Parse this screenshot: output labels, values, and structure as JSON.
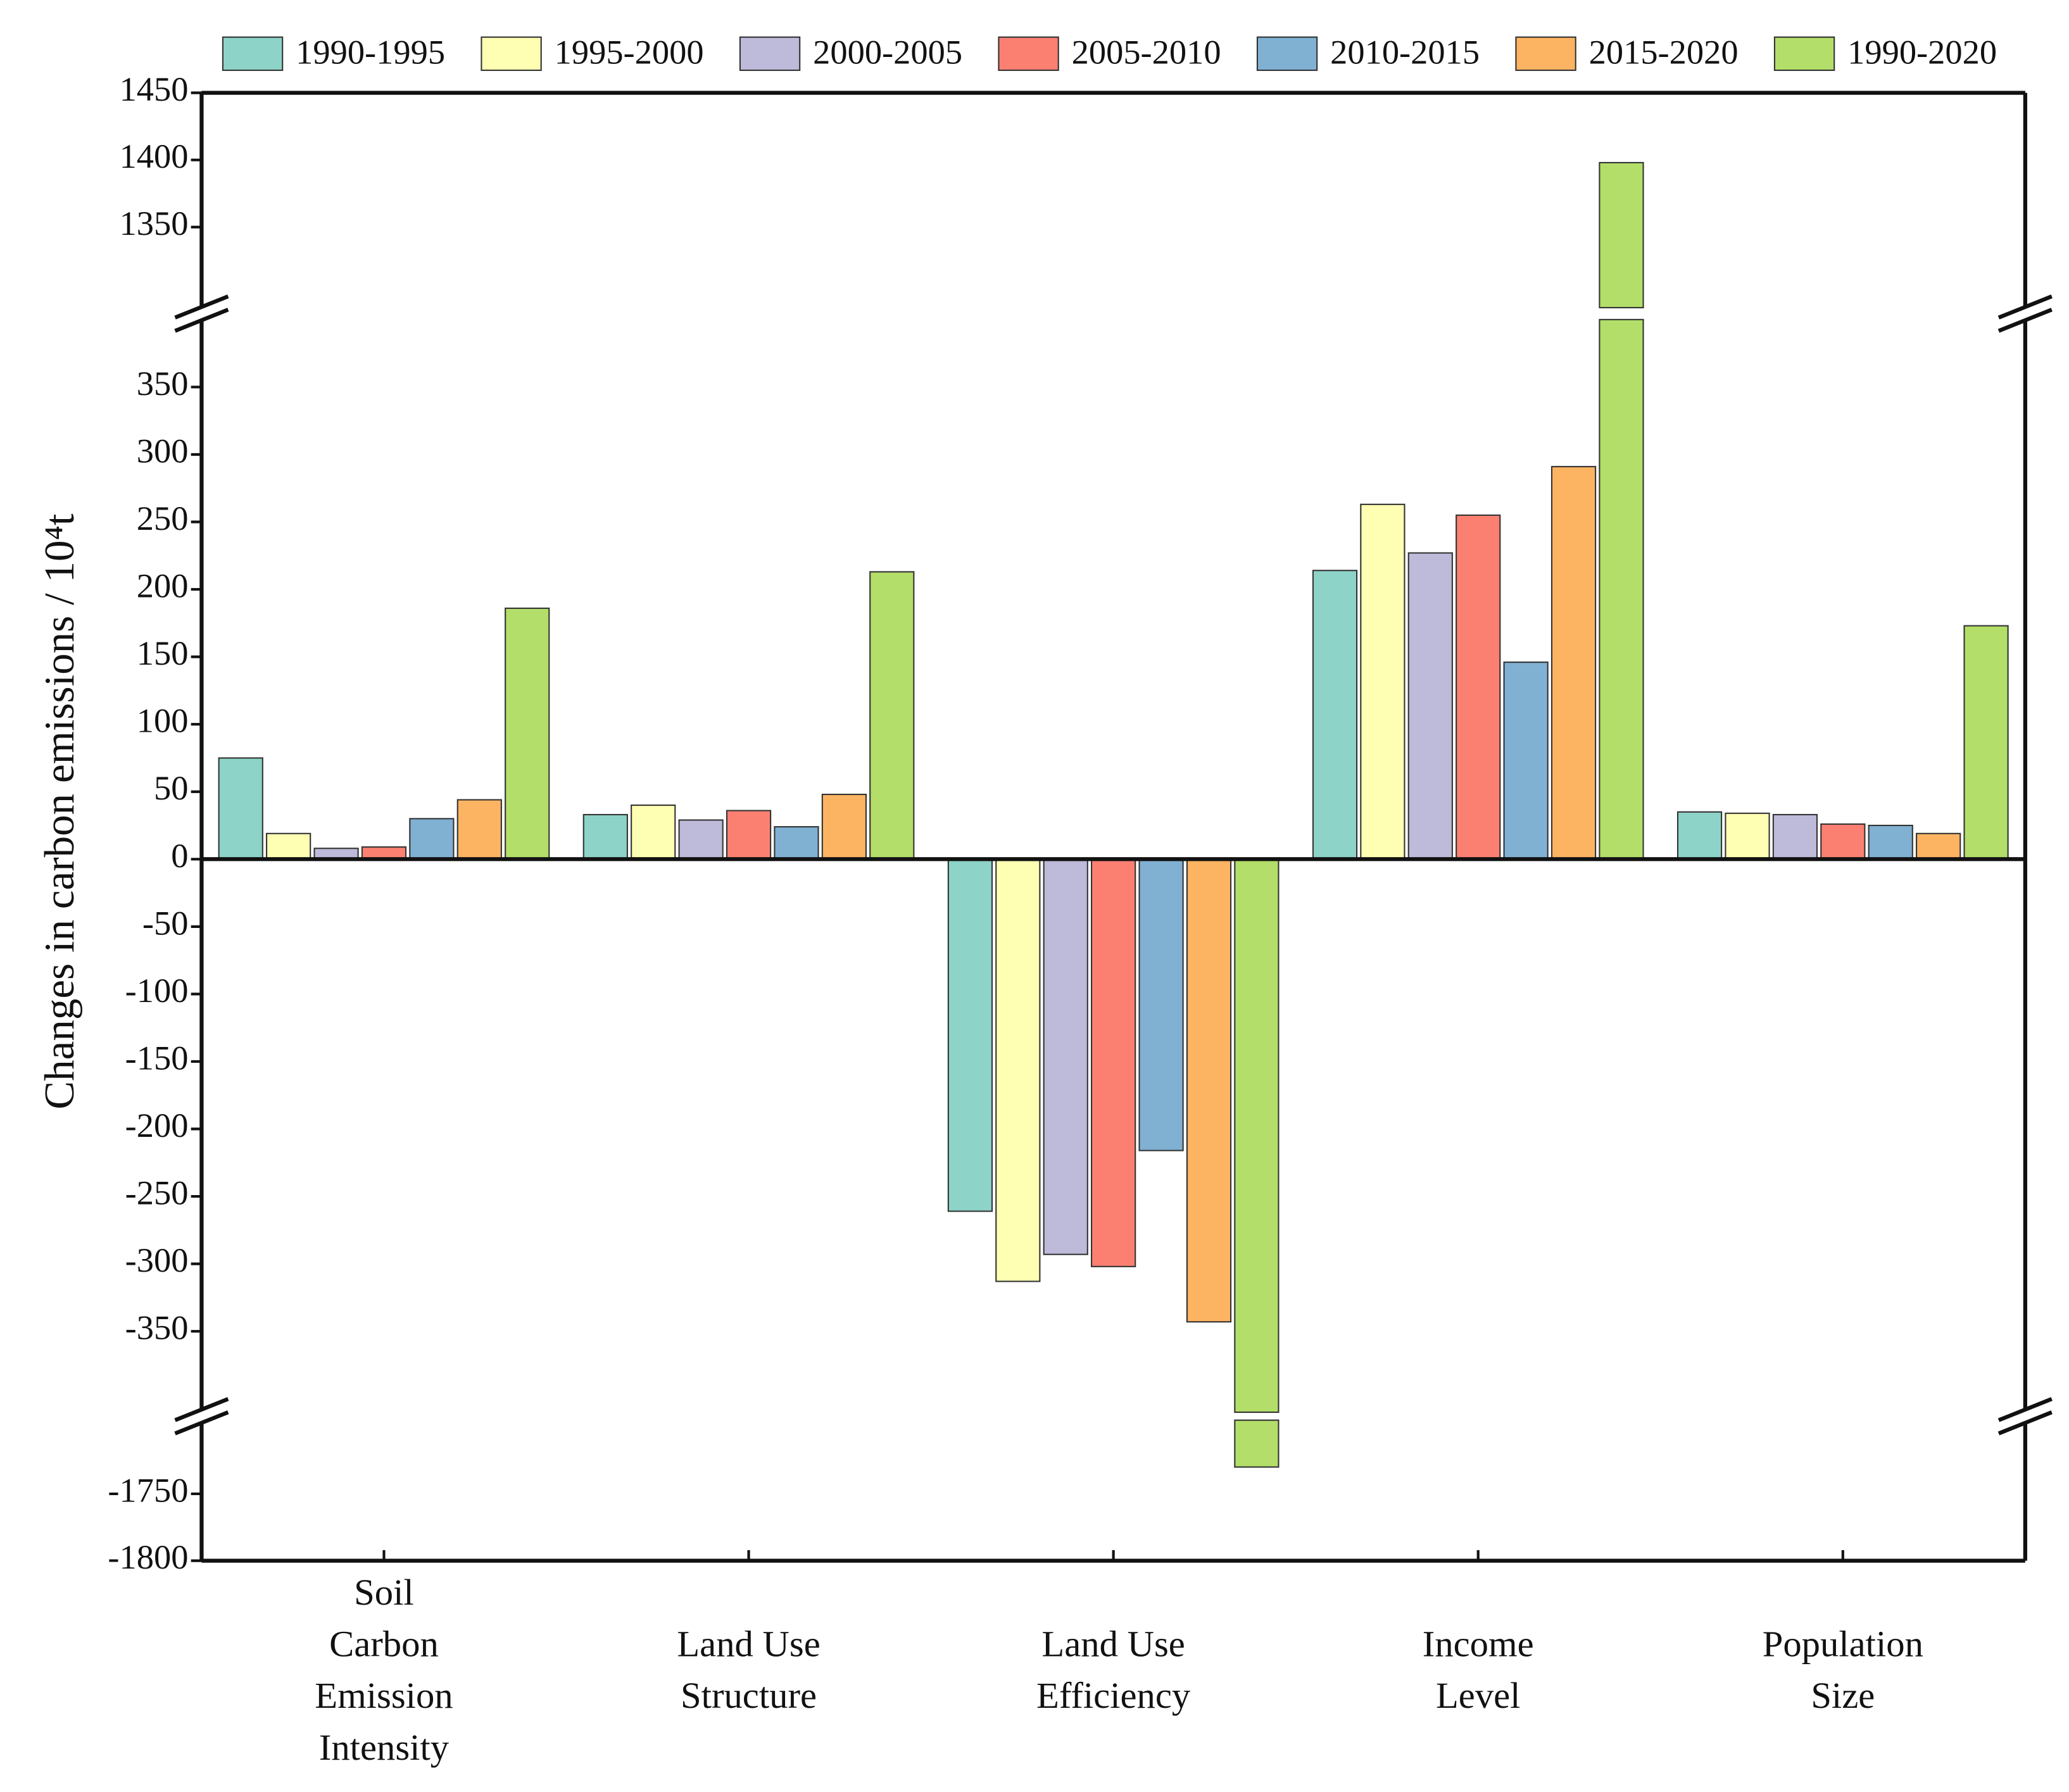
{
  "chart_data": {
    "type": "bar",
    "ylabel": "Changes in carbon emissions / 10⁴t",
    "categories": [
      "Soil Carbon Emission Intensity",
      "Land Use Structure",
      "Land Use Efficiency",
      "Income Level",
      "Population Size"
    ],
    "series": [
      {
        "name": "1990-1995",
        "color": "#8dd3c7",
        "values": [
          75,
          33,
          -261,
          214,
          35
        ]
      },
      {
        "name": "1995-2000",
        "color": "#ffffb3",
        "values": [
          19,
          40,
          -313,
          263,
          34
        ]
      },
      {
        "name": "2000-2005",
        "color": "#bebada",
        "values": [
          8,
          29,
          -293,
          227,
          33
        ]
      },
      {
        "name": "2005-2010",
        "color": "#fb8072",
        "values": [
          9,
          36,
          -302,
          255,
          26
        ]
      },
      {
        "name": "2010-2015",
        "color": "#80b1d3",
        "values": [
          30,
          24,
          -216,
          146,
          25
        ]
      },
      {
        "name": "2015-2020",
        "color": "#fdb462",
        "values": [
          44,
          48,
          -343,
          291,
          19
        ]
      },
      {
        "name": "1990-2020",
        "color": "#b3de69",
        "values": [
          186,
          213,
          -1730,
          1398,
          173
        ]
      }
    ],
    "y_segments": [
      {
        "ylim": [
          1290,
          1450
        ],
        "yticks": [
          1350,
          1400,
          1450
        ]
      },
      {
        "ylim": [
          -410,
          400
        ],
        "yticks": [
          -350,
          -300,
          -250,
          -200,
          -150,
          -100,
          -50,
          0,
          50,
          100,
          150,
          200,
          250,
          300,
          350
        ]
      },
      {
        "ylim": [
          -1800,
          -1695
        ],
        "yticks": [
          -1800,
          -1750
        ]
      }
    ],
    "axis_break": true,
    "legend_position": "top"
  }
}
